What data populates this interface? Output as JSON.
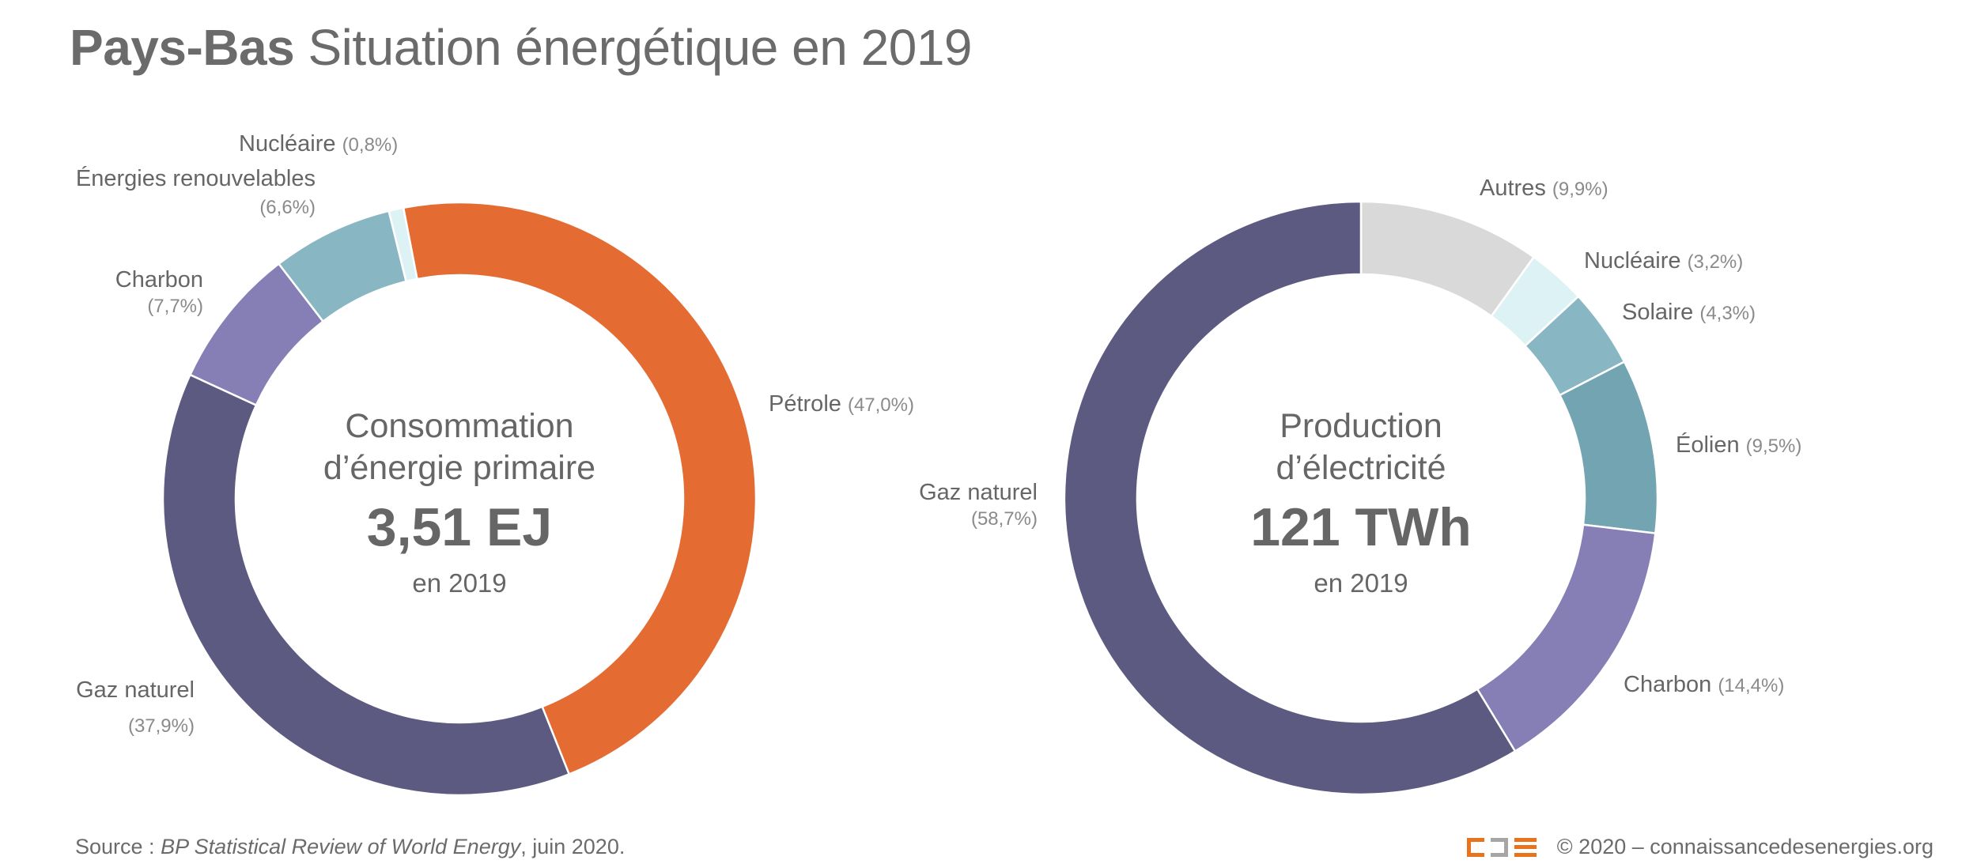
{
  "title": {
    "country": "Pays-Bas",
    "subtitle": "Situation énergétique en 2019"
  },
  "chart_data": [
    {
      "type": "pie",
      "variant": "donut",
      "title": "Consommation d’énergie primaire",
      "center_line1": "Consommation",
      "center_line2": "d’énergie primaire",
      "total_label": "3,51 EJ",
      "total_value": 3.51,
      "total_unit": "EJ",
      "year_label": "en 2019",
      "start_angle_deg": -10.9,
      "direction": "clockwise",
      "slices": [
        {
          "name": "Pétrole",
          "value": 47.0,
          "pct_label": "(47,0%)",
          "color": "#E46C33",
          "label_pos": "right",
          "label_layout": "inline",
          "label_anchor": "start"
        },
        {
          "name": "Gaz naturel",
          "value": 37.9,
          "pct_label": "(37,9%)",
          "color": "#5C5A80",
          "label_pos": "left-bottom",
          "label_layout": "stacked",
          "label_anchor": "end"
        },
        {
          "name": "Charbon",
          "value": 7.7,
          "pct_label": "(7,7%)",
          "color": "#857FB6",
          "label_pos": "upper-left",
          "label_layout": "stacked",
          "label_anchor": "end"
        },
        {
          "name": "Énergies renouvelables",
          "value": 6.6,
          "pct_label": "(6,6%)",
          "color": "#88B7C3",
          "label_pos": "top-left",
          "label_layout": "stacked",
          "label_anchor": "end"
        },
        {
          "name": "Nucléaire",
          "value": 0.8,
          "pct_label": "(0,8%)",
          "color": "#DDF2F5",
          "label_pos": "top",
          "label_layout": "inline",
          "label_anchor": "start"
        }
      ]
    },
    {
      "type": "pie",
      "variant": "donut",
      "title": "Production d’électricité",
      "center_line1": "Production",
      "center_line2": "d’électricité",
      "total_label": "121 TWh",
      "total_value": 121,
      "total_unit": "TWh",
      "year_label": "en 2019",
      "start_angle_deg": 0,
      "direction": "clockwise",
      "slices": [
        {
          "name": "Autres",
          "value": 9.9,
          "pct_label": "(9,9%)",
          "color": "#D9D9D9",
          "label_pos": "top-right",
          "label_layout": "inline",
          "label_anchor": "start"
        },
        {
          "name": "Nucléaire",
          "value": 3.2,
          "pct_label": "(3,2%)",
          "color": "#DDF2F5",
          "label_pos": "right",
          "label_layout": "inline",
          "label_anchor": "start"
        },
        {
          "name": "Solaire",
          "value": 4.3,
          "pct_label": "(4,3%)",
          "color": "#88B7C3",
          "label_pos": "right",
          "label_layout": "inline",
          "label_anchor": "start"
        },
        {
          "name": "Éolien",
          "value": 9.5,
          "pct_label": "(9,5%)",
          "color": "#72A5B1",
          "label_pos": "right",
          "label_layout": "inline",
          "label_anchor": "start"
        },
        {
          "name": "Charbon",
          "value": 14.4,
          "pct_label": "(14,4%)",
          "color": "#857FB6",
          "label_pos": "lower-right",
          "label_layout": "inline",
          "label_anchor": "start"
        },
        {
          "name": "Gaz naturel",
          "value": 58.7,
          "pct_label": "(58,7%)",
          "color": "#5C5A80",
          "label_pos": "left",
          "label_layout": "stacked",
          "label_anchor": "end"
        }
      ]
    }
  ],
  "footer": {
    "source_prefix": "Source : ",
    "source_title": "BP Statistical Review of World Energy",
    "source_suffix": ", juin 2020.",
    "copyright": "© 2020 – connaissancedesenergies.org",
    "logo_icon": "cde-logo-icon"
  }
}
